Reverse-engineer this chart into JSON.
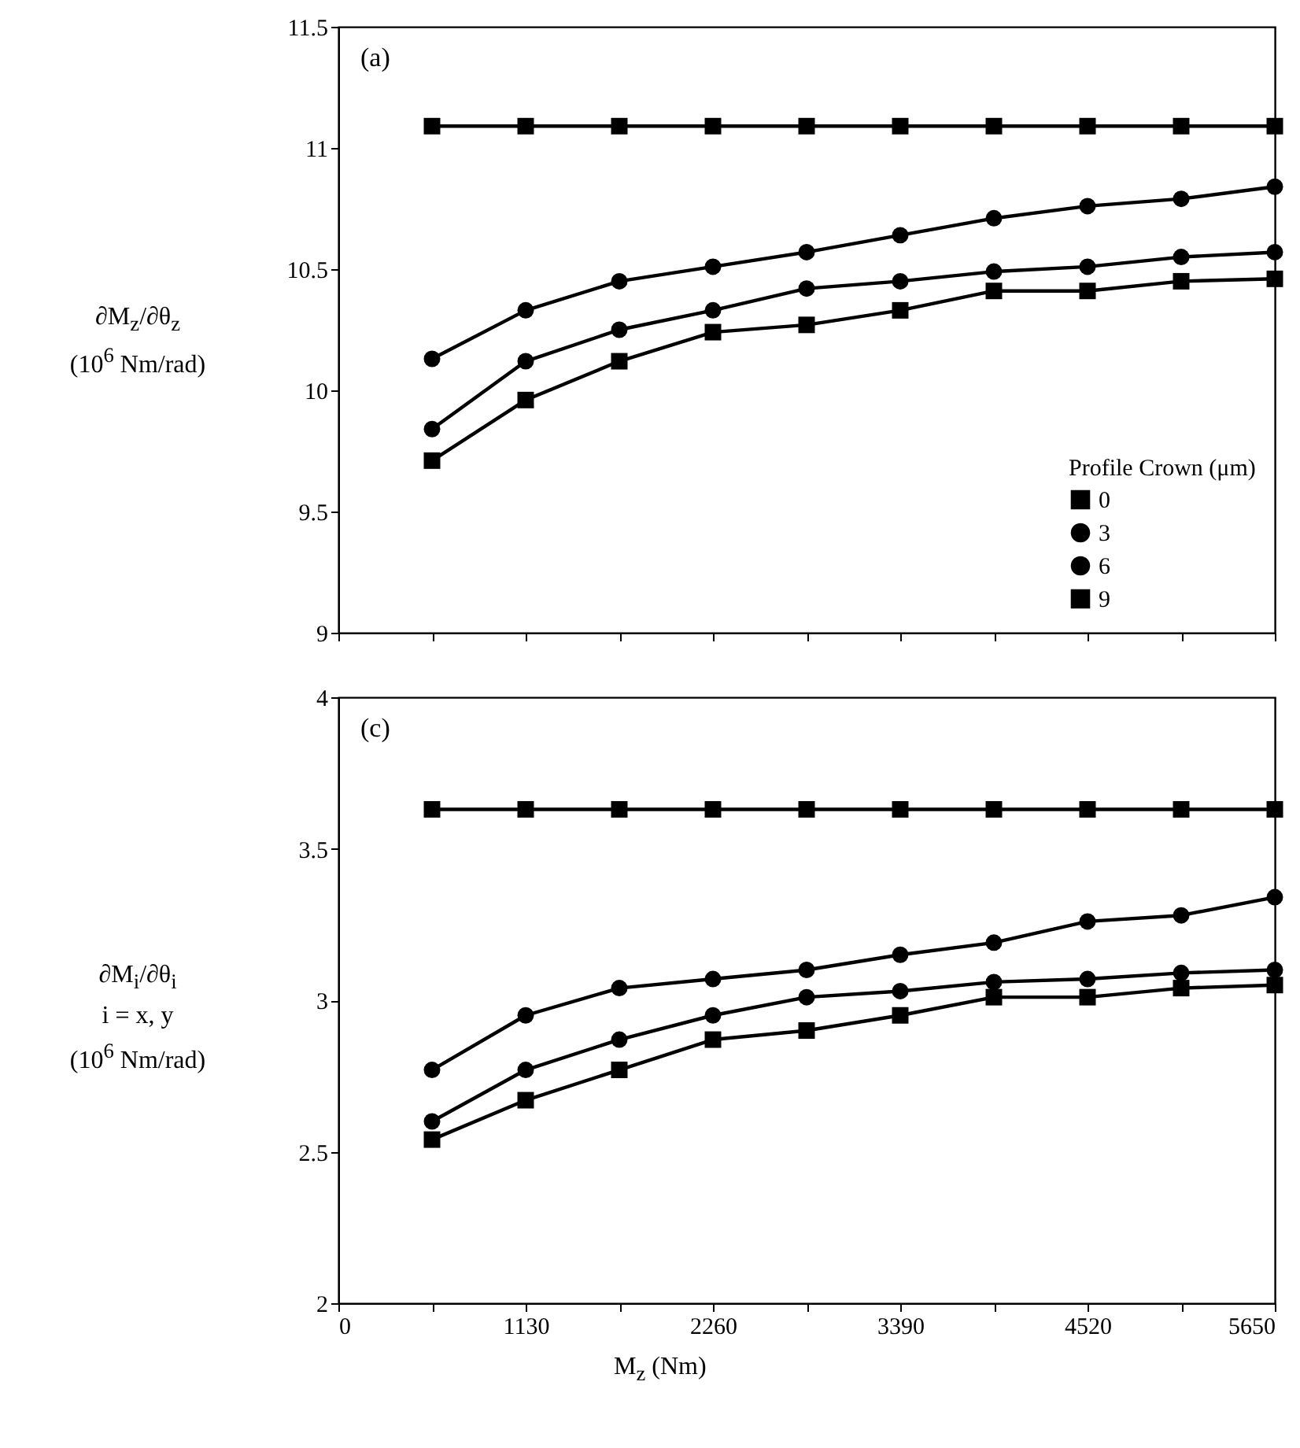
{
  "chart_data": [
    {
      "type": "line",
      "ylabel": "∂M$_{z}$/∂θ$_{z}$\n(10$^{6}$ Nm/rad)",
      "legend_title": "Profile Crown (μm)",
      "legend": "bottom right",
      "grid": false,
      "tick_labels": "y",
      "annotations": [
        "(a)"
      ],
      "x": [
        565,
        1130,
        1695,
        2260,
        2825,
        3390,
        3955,
        4520,
        5085,
        5650
      ],
      "xlim": [
        0,
        5650
      ],
      "xticks": [
        0,
        {
          "value": 565,
          "label": null
        },
        1130,
        {
          "value": 1695,
          "label": null
        },
        2260,
        {
          "value": 2825,
          "label": null
        },
        3390,
        {
          "value": 3955,
          "label": null
        },
        4520,
        {
          "value": 5085,
          "label": null
        },
        5650
      ],
      "ylim": [
        9,
        11.5
      ],
      "yticks": [
        9,
        9.5,
        10,
        10.5,
        11,
        11.5
      ],
      "series": [
        {
          "name": "0",
          "color": "#000000",
          "marker": "square",
          "values": [
            11.09,
            11.09,
            11.09,
            11.09,
            11.09,
            11.09,
            11.09,
            11.09,
            11.09,
            11.09
          ]
        },
        {
          "name": "3",
          "color": "#000000",
          "marker": "circle",
          "values": [
            10.13,
            10.33,
            10.45,
            10.51,
            10.57,
            10.64,
            10.71,
            10.76,
            10.79,
            10.84
          ]
        },
        {
          "name": "6",
          "color": "#000000",
          "marker": "circle",
          "values": [
            9.84,
            10.12,
            10.25,
            10.33,
            10.42,
            10.45,
            10.49,
            10.51,
            10.55,
            10.57
          ]
        },
        {
          "name": "9",
          "color": "#000000",
          "marker": "square",
          "values": [
            9.71,
            9.96,
            10.12,
            10.24,
            10.27,
            10.33,
            10.41,
            10.41,
            10.45,
            10.46
          ]
        }
      ]
    },
    {
      "type": "line",
      "ylabel": "∂M$_{i}$/∂θ$_{i}$\ni = x, y\n(10$^{6}$ Nm/rad)",
      "xlabel": "M$_{z}$ (Nm)",
      "grid": false,
      "annotations": [
        "(c)"
      ],
      "x": [
        565,
        1130,
        1695,
        2260,
        2825,
        3390,
        3955,
        4520,
        5085,
        5650
      ],
      "xlim": [
        0,
        5650
      ],
      "xticks": [
        0,
        {
          "value": 565,
          "label": null
        },
        1130,
        {
          "value": 1695,
          "label": null
        },
        2260,
        {
          "value": 2825,
          "label": null
        },
        3390,
        {
          "value": 3955,
          "label": null
        },
        4520,
        {
          "value": 5085,
          "label": null
        },
        5650
      ],
      "ylim": [
        2,
        4
      ],
      "yticks": [
        2,
        2.5,
        3,
        3.5,
        4
      ],
      "series": [
        {
          "color": "#000000",
          "marker": "square",
          "values": [
            3.63,
            3.63,
            3.63,
            3.63,
            3.63,
            3.63,
            3.63,
            3.63,
            3.63,
            3.63
          ]
        },
        {
          "color": "#000000",
          "marker": "circle",
          "values": [
            2.77,
            2.95,
            3.04,
            3.07,
            3.1,
            3.15,
            3.19,
            3.26,
            3.28,
            3.34
          ]
        },
        {
          "color": "#000000",
          "marker": "circle",
          "values": [
            2.6,
            2.77,
            2.87,
            2.95,
            3.01,
            3.03,
            3.06,
            3.07,
            3.09,
            3.1
          ]
        },
        {
          "color": "#000000",
          "marker": "square",
          "values": [
            2.54,
            2.67,
            2.77,
            2.87,
            2.9,
            2.95,
            3.01,
            3.01,
            3.04,
            3.05
          ]
        }
      ]
    }
  ]
}
